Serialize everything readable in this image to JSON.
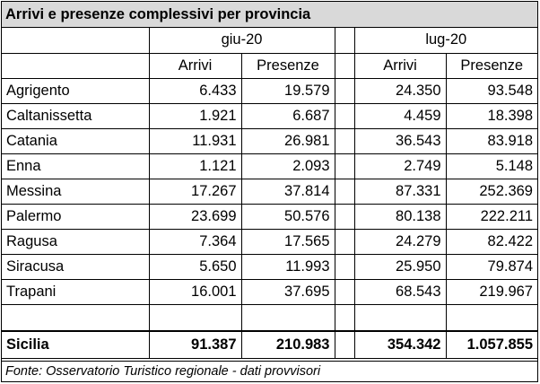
{
  "title": "Arrivi e presenze complessivi per provincia",
  "periods": [
    "giu-20",
    "lug-20"
  ],
  "measures": [
    "Arrivi",
    "Presenze"
  ],
  "rows": [
    {
      "provincia": "Agrigento",
      "v": [
        "6.433",
        "19.579",
        "24.350",
        "93.548"
      ]
    },
    {
      "provincia": "Caltanissetta",
      "v": [
        "1.921",
        "6.687",
        "4.459",
        "18.398"
      ]
    },
    {
      "provincia": "Catania",
      "v": [
        "11.931",
        "26.981",
        "36.543",
        "83.918"
      ]
    },
    {
      "provincia": "Enna",
      "v": [
        "1.121",
        "2.093",
        "2.749",
        "5.148"
      ]
    },
    {
      "provincia": "Messina",
      "v": [
        "17.267",
        "37.814",
        "87.331",
        "252.369"
      ]
    },
    {
      "provincia": "Palermo",
      "v": [
        "23.699",
        "50.576",
        "80.138",
        "222.211"
      ]
    },
    {
      "provincia": "Ragusa",
      "v": [
        "7.364",
        "17.565",
        "24.279",
        "82.422"
      ]
    },
    {
      "provincia": "Siracusa",
      "v": [
        "5.650",
        "11.993",
        "25.950",
        "79.874"
      ]
    },
    {
      "provincia": "Trapani",
      "v": [
        "16.001",
        "37.695",
        "68.543",
        "219.967"
      ]
    }
  ],
  "total": {
    "provincia": "Sicilia",
    "v": [
      "91.387",
      "210.983",
      "354.342",
      "1.057.855"
    ]
  },
  "source": "Fonte: Osservatorio Turistico regionale - dati provvisori"
}
